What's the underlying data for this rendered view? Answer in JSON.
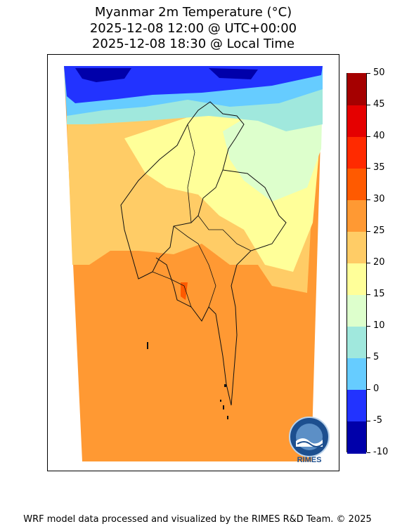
{
  "title": {
    "line1": "Myanmar 2m Temperature (°C)",
    "line2": "2025-12-08 12:00 @ UTC+00:00",
    "line3": "2025-12-08 18:30 @ Local Time"
  },
  "colorbar": {
    "unit": "°C",
    "ticks": [
      "50",
      "45",
      "40",
      "35",
      "30",
      "25",
      "20",
      "15",
      "10",
      "5",
      "0",
      "-5",
      "-10"
    ],
    "bins": [
      {
        "range": "45 to 50",
        "color": "#a50000"
      },
      {
        "range": "40 to 45",
        "color": "#e50000"
      },
      {
        "range": "35 to 40",
        "color": "#ff2a00"
      },
      {
        "range": "30 to 35",
        "color": "#ff5a00"
      },
      {
        "range": "25 to 30",
        "color": "#ff9933"
      },
      {
        "range": "20 to 25",
        "color": "#ffcc66"
      },
      {
        "range": "15 to 20",
        "color": "#ffff99"
      },
      {
        "range": "10 to 15",
        "color": "#ddffcc"
      },
      {
        "range": "5 to 10",
        "color": "#a0e8dd"
      },
      {
        "range": "0 to 5",
        "color": "#66ccff"
      },
      {
        "range": "-5 to 0",
        "color": "#2233ff"
      },
      {
        "range": "-10 to -5",
        "color": "#0000aa"
      }
    ]
  },
  "map": {
    "region": "Myanmar",
    "variable": "2m Temperature",
    "regions_described": [
      {
        "area": "far north mountains",
        "range": "-5 to 5"
      },
      {
        "area": "north-east uplands",
        "range": "10 to 20"
      },
      {
        "area": "central and eastern highlands",
        "range": "15 to 25"
      },
      {
        "area": "south and Bay of Bengal",
        "range": "25 to 30"
      }
    ]
  },
  "logo": {
    "text": "RIMES"
  },
  "footer": "WRF model data processed and visualized by the RIMES R&D Team. © 2025"
}
